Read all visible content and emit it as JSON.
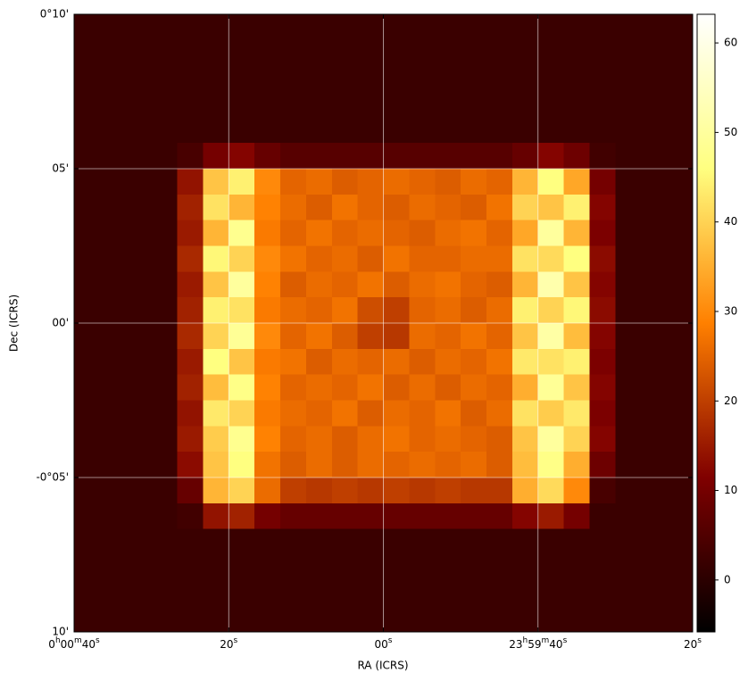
{
  "chart_data": {
    "type": "image",
    "xlabel": "RA (ICRS)",
    "ylabel": "Dec (ICRS)",
    "xlim": [
      40,
      -40
    ],
    "xticks": [
      {
        "value": 40,
        "label": "0h00m40s"
      },
      {
        "value": 20,
        "label": "20s"
      },
      {
        "value": 0,
        "label": "00s"
      },
      {
        "value": -20,
        "label": "23h59m40s"
      },
      {
        "value": -40,
        "label": "20s"
      }
    ],
    "ylim": [
      -10,
      10
    ],
    "yticks": [
      {
        "value": 10,
        "label": "0°10'"
      },
      {
        "value": 5,
        "label": "05'"
      },
      {
        "value": 0,
        "label": "00'"
      },
      {
        "value": -5,
        "label": "-0°05'"
      },
      {
        "value": -10,
        "label": "10'"
      }
    ],
    "grid": true,
    "colormap": "afmhot",
    "clim": [
      -5.8,
      63.2
    ],
    "cticks": [
      0,
      10,
      20,
      30,
      40,
      50,
      60
    ],
    "z": [
      [
        2,
        2,
        2,
        2,
        2,
        2,
        2,
        2,
        2,
        2,
        2,
        2,
        2,
        2,
        2,
        2,
        2,
        2,
        2,
        2,
        2,
        2,
        2,
        2
      ],
      [
        2,
        2,
        2,
        2,
        2,
        2,
        2,
        2,
        2,
        2,
        2,
        2,
        2,
        2,
        2,
        2,
        2,
        2,
        2,
        2,
        2,
        2,
        2,
        2
      ],
      [
        2,
        2,
        2,
        2,
        2,
        2,
        2,
        2,
        2,
        2,
        2,
        2,
        2,
        2,
        2,
        2,
        2,
        2,
        2,
        2,
        2,
        2,
        2,
        2
      ],
      [
        2,
        2,
        2,
        2,
        2,
        2,
        2,
        2,
        2,
        2,
        2,
        2,
        2,
        2,
        2,
        2,
        2,
        2,
        2,
        2,
        2,
        2,
        2,
        2
      ],
      [
        2,
        2,
        2,
        2,
        2,
        2,
        2,
        2,
        2,
        2,
        2,
        2,
        2,
        2,
        2,
        2,
        2,
        2,
        2,
        2,
        2,
        2,
        2,
        2
      ],
      [
        2,
        2,
        2,
        2,
        4,
        10,
        12,
        8,
        6,
        6,
        6,
        6,
        6,
        6,
        6,
        6,
        6,
        8,
        12,
        9,
        3,
        2,
        2,
        2
      ],
      [
        2,
        2,
        2,
        2,
        14,
        38,
        44,
        30,
        25,
        26,
        24,
        25,
        26,
        25,
        24,
        26,
        25,
        36,
        46,
        34,
        10,
        2,
        2,
        2
      ],
      [
        2,
        2,
        2,
        2,
        16,
        42,
        36,
        29,
        26,
        24,
        27,
        25,
        24,
        26,
        25,
        24,
        27,
        40,
        38,
        44,
        12,
        2,
        2,
        2
      ],
      [
        2,
        2,
        2,
        2,
        15,
        36,
        48,
        28,
        25,
        27,
        25,
        26,
        25,
        24,
        26,
        27,
        25,
        34,
        50,
        36,
        11,
        2,
        2,
        2
      ],
      [
        2,
        2,
        2,
        2,
        17,
        45,
        40,
        30,
        27,
        25,
        26,
        24,
        27,
        25,
        25,
        26,
        26,
        42,
        41,
        46,
        13,
        2,
        2,
        2
      ],
      [
        2,
        2,
        2,
        2,
        15,
        38,
        50,
        29,
        24,
        26,
        25,
        27,
        24,
        26,
        27,
        25,
        24,
        36,
        52,
        38,
        12,
        2,
        2,
        2
      ],
      [
        2,
        2,
        2,
        2,
        16,
        44,
        42,
        28,
        26,
        25,
        27,
        22,
        20,
        25,
        26,
        24,
        26,
        44,
        40,
        45,
        13,
        2,
        2,
        2
      ],
      [
        2,
        2,
        2,
        2,
        17,
        40,
        49,
        30,
        25,
        27,
        24,
        20,
        19,
        26,
        25,
        27,
        25,
        38,
        51,
        37,
        12,
        2,
        2,
        2
      ],
      [
        2,
        2,
        2,
        2,
        15,
        46,
        38,
        28,
        27,
        24,
        26,
        25,
        26,
        24,
        26,
        25,
        27,
        43,
        42,
        44,
        11,
        2,
        2,
        2
      ],
      [
        2,
        2,
        2,
        2,
        16,
        37,
        47,
        29,
        25,
        26,
        25,
        27,
        24,
        26,
        24,
        26,
        25,
        35,
        49,
        38,
        12,
        2,
        2,
        2
      ],
      [
        2,
        2,
        2,
        2,
        14,
        43,
        40,
        28,
        26,
        25,
        27,
        24,
        26,
        25,
        27,
        24,
        26,
        42,
        39,
        43,
        11,
        2,
        2,
        2
      ],
      [
        2,
        2,
        2,
        2,
        15,
        39,
        48,
        29,
        25,
        26,
        24,
        26,
        27,
        25,
        26,
        25,
        24,
        38,
        50,
        40,
        12,
        2,
        2,
        2
      ],
      [
        2,
        2,
        2,
        2,
        13,
        38,
        46,
        27,
        24,
        26,
        24,
        26,
        25,
        26,
        25,
        26,
        24,
        37,
        47,
        35,
        9,
        2,
        2,
        2
      ],
      [
        2,
        2,
        2,
        2,
        8,
        36,
        40,
        26,
        20,
        19,
        20,
        19,
        20,
        19,
        20,
        19,
        19,
        35,
        41,
        30,
        4,
        2,
        2,
        2
      ],
      [
        2,
        2,
        2,
        2,
        3,
        14,
        16,
        10,
        8,
        8,
        8,
        8,
        8,
        8,
        8,
        8,
        8,
        12,
        15,
        10,
        2,
        2,
        2,
        2
      ],
      [
        2,
        2,
        2,
        2,
        2,
        2,
        2,
        2,
        2,
        2,
        2,
        2,
        2,
        2,
        2,
        2,
        2,
        2,
        2,
        2,
        2,
        2,
        2,
        2
      ],
      [
        2,
        2,
        2,
        2,
        2,
        2,
        2,
        2,
        2,
        2,
        2,
        2,
        2,
        2,
        2,
        2,
        2,
        2,
        2,
        2,
        2,
        2,
        2,
        2
      ],
      [
        2,
        2,
        2,
        2,
        2,
        2,
        2,
        2,
        2,
        2,
        2,
        2,
        2,
        2,
        2,
        2,
        2,
        2,
        2,
        2,
        2,
        2,
        2,
        2
      ],
      [
        2,
        2,
        2,
        2,
        2,
        2,
        2,
        2,
        2,
        2,
        2,
        2,
        2,
        2,
        2,
        2,
        2,
        2,
        2,
        2,
        2,
        2,
        2,
        2
      ]
    ]
  }
}
